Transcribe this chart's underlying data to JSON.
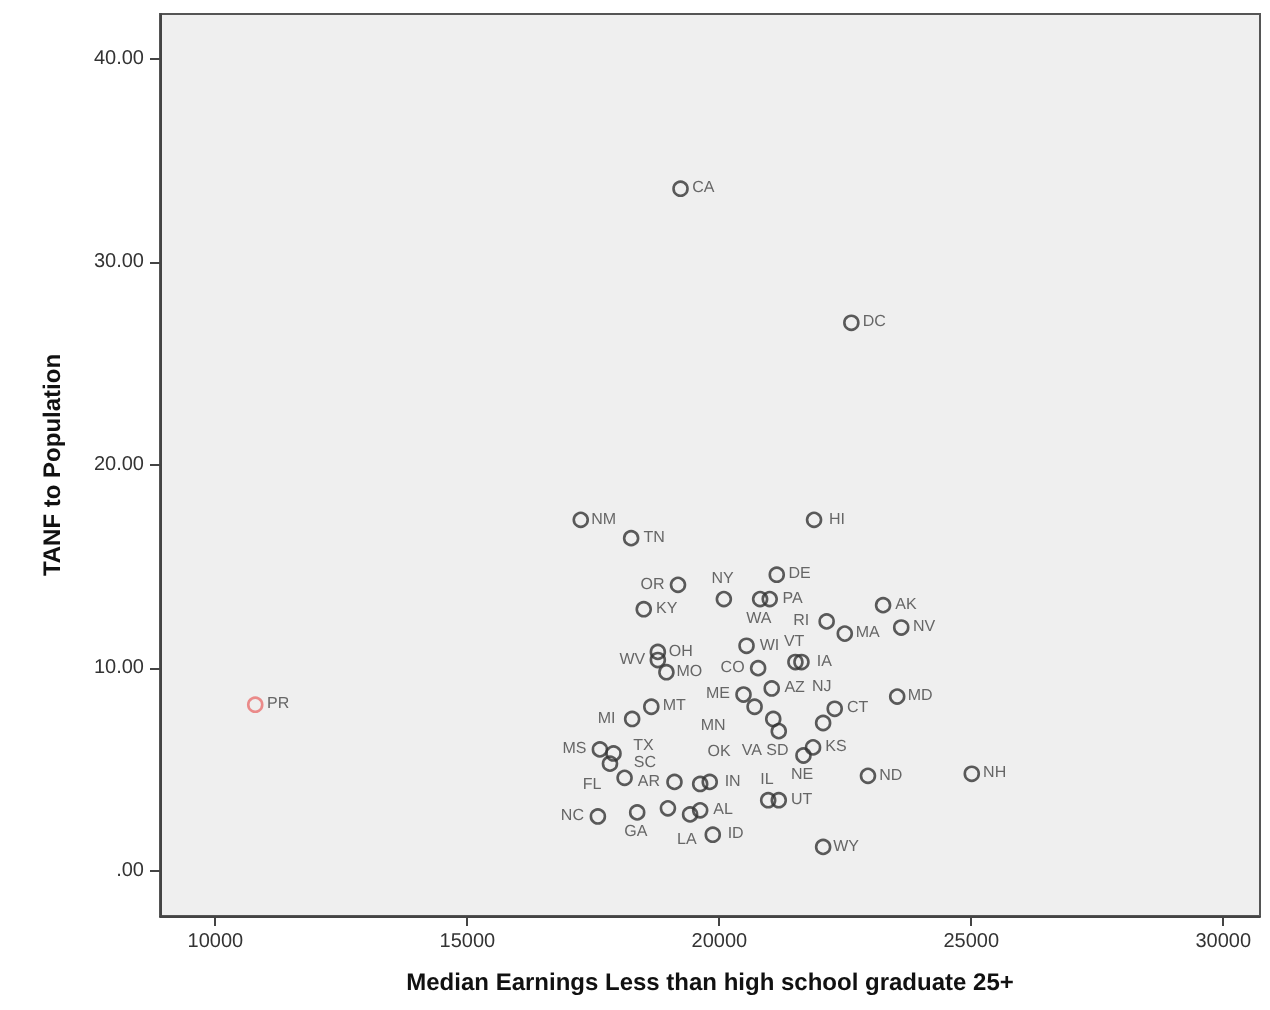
{
  "chart_data": {
    "type": "scatter",
    "xlabel": "Median Earnings Less than high school graduate 25+",
    "ylabel": "TANF to Population",
    "xlim": [
      8900,
      30730
    ],
    "ylim": [
      -2.2,
      42.2
    ],
    "xticks": [
      10000,
      15000,
      20000,
      25000,
      30000
    ],
    "yticks": [
      {
        "value": 0,
        "label": ".00"
      },
      {
        "value": 10,
        "label": "10.00"
      },
      {
        "value": 20,
        "label": "20.00"
      },
      {
        "value": 30,
        "label": "30.00"
      },
      {
        "value": 40,
        "label": "40.00"
      }
    ],
    "grid": false,
    "marker": "circle",
    "series": [
      {
        "x": [
          19230,
          22620,
          17250,
          18250,
          21880,
          10790,
          25010,
          21140,
          19180,
          18500,
          20090,
          20810,
          21000,
          22130,
          23250,
          23610,
          23530,
          22490,
          21630,
          21510,
          18780,
          18780,
          20540,
          18950,
          20770,
          20480,
          22290,
          20700,
          18650,
          18270,
          17630,
          21070,
          21180,
          22060,
          22060,
          21180,
          19870,
          22950,
          21670,
          21860,
          20970,
          19110,
          17900,
          17830,
          18120,
          17590,
          18370,
          18980,
          19810,
          19620,
          21040,
          19620,
          19420
        ],
        "values": [
          33.6,
          27.0,
          17.3,
          16.4,
          17.3,
          8.2,
          4.8,
          14.6,
          14.1,
          12.9,
          13.4,
          13.4,
          13.4,
          12.3,
          13.1,
          12.0,
          8.6,
          11.7,
          10.3,
          10.3,
          10.8,
          10.4,
          11.1,
          9.8,
          10.0,
          8.7,
          8.0,
          8.1,
          8.1,
          7.5,
          6.0,
          7.5,
          6.9,
          7.3,
          1.2,
          3.5,
          1.8,
          4.7,
          5.7,
          6.1,
          3.5,
          4.4,
          5.8,
          5.3,
          4.6,
          2.7,
          2.9,
          3.1,
          4.4,
          4.3,
          9.0,
          3.0,
          2.8
        ],
        "value_labels": [
          "CA",
          "DC",
          "NM",
          "TN",
          "HI",
          "PR",
          "NH",
          "DE",
          "OR",
          "KY",
          "NY",
          "WA",
          "PA",
          "RI",
          "AK",
          "NV",
          "MD",
          "MA",
          "IA",
          "VT",
          "OH",
          "WV",
          "WI",
          "MO",
          "CO",
          "ME",
          "CT",
          "MN",
          "MT",
          "MI",
          "MS",
          "VA",
          "SD",
          "NJ",
          "WY",
          "UT",
          "ID",
          "ND",
          "NE",
          "KS",
          "IL",
          "AR",
          "FL",
          "SC",
          "TX",
          "NC",
          "GA",
          "LA",
          "IN",
          "OK",
          "AZ",
          "AL",
          null
        ],
        "colors": [
          "#333333",
          "#333333",
          "#333333",
          "#333333",
          "#333333",
          "#e8716f",
          "#333333",
          "#333333",
          "#333333",
          "#333333",
          "#333333",
          "#333333",
          "#333333",
          "#333333",
          "#333333",
          "#333333",
          "#333333",
          "#333333",
          "#333333",
          "#333333",
          "#333333",
          "#333333",
          "#333333",
          "#333333",
          "#333333",
          "#333333",
          "#333333",
          "#333333",
          "#333333",
          "#333333",
          "#333333",
          "#333333",
          "#333333",
          "#333333",
          "#333333",
          "#333333",
          "#333333",
          "#333333",
          "#333333",
          "#333333",
          "#333333",
          "#333333",
          "#333333",
          "#333333",
          "#333333",
          "#333333",
          "#333333",
          "#333333",
          "#333333",
          "#333333",
          "#333333",
          "#333333",
          "#333333"
        ]
      }
    ]
  }
}
